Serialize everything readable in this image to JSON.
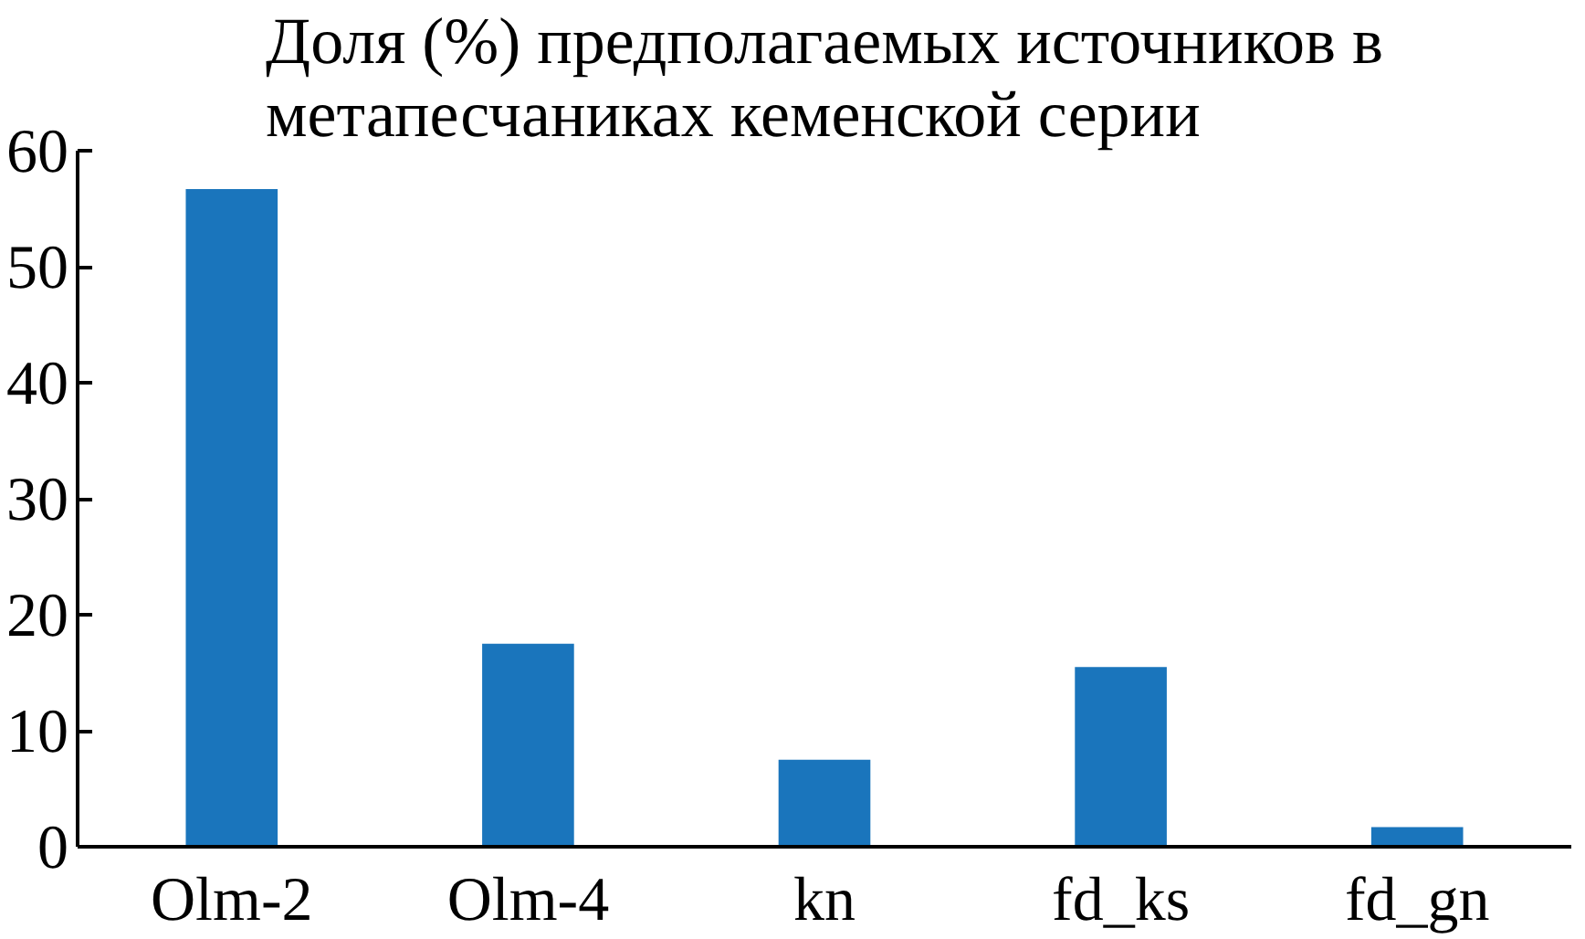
{
  "chart_data": {
    "type": "bar",
    "title": "Доля (%) предполагаемых источников в метапесчаниках кеменской серии",
    "categories": [
      "Olm-2",
      "Olm-4",
      "kn",
      "fd_ks",
      "fd_gn"
    ],
    "values": [
      56.7,
      17.5,
      7.5,
      15.5,
      1.7
    ],
    "color": "#1a75bc",
    "ylim": [
      0,
      60
    ],
    "yticks": [
      0,
      10,
      20,
      30,
      40,
      50,
      60
    ],
    "grid": false
  }
}
